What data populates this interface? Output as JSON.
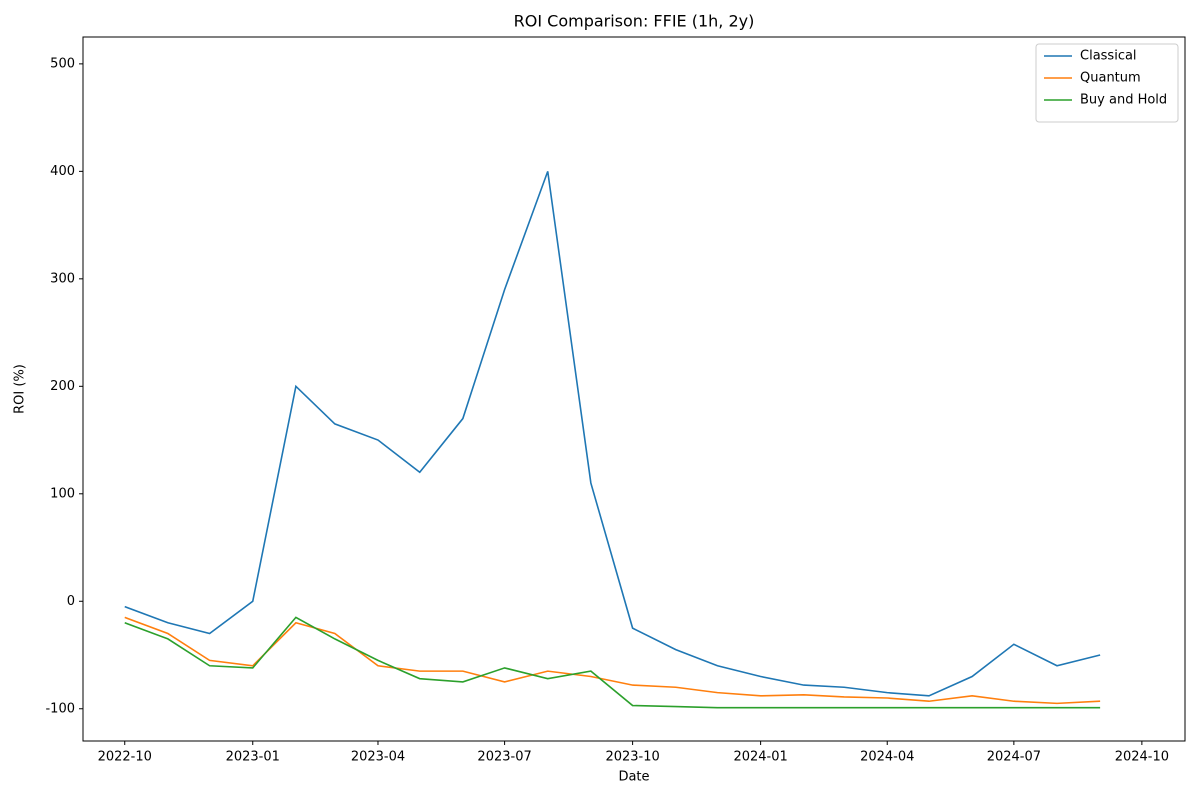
{
  "chart_data": {
    "type": "line",
    "title": "ROI Comparison: FFIE (1h, 2y)",
    "xlabel": "Date",
    "ylabel": "ROI (%)",
    "x": [
      "2022-10",
      "2022-11",
      "2022-12",
      "2023-01",
      "2023-02",
      "2023-03",
      "2023-04",
      "2023-05",
      "2023-06",
      "2023-07",
      "2023-08",
      "2023-09",
      "2023-10",
      "2023-11",
      "2023-12",
      "2024-01",
      "2024-02",
      "2024-03",
      "2024-04",
      "2024-05",
      "2024-06",
      "2024-07",
      "2024-08",
      "2024-09"
    ],
    "series": [
      {
        "name": "Classical",
        "color": "#1f77b4",
        "values": [
          -5,
          -20,
          -30,
          0,
          200,
          165,
          150,
          120,
          170,
          290,
          400,
          110,
          -25,
          -45,
          -60,
          -70,
          -78,
          -80,
          -85,
          -88,
          -70,
          -40,
          -60,
          -50
        ]
      },
      {
        "name": "Quantum",
        "color": "#ff7f0e",
        "values": [
          -15,
          -30,
          -55,
          -60,
          -20,
          -30,
          -60,
          -65,
          -65,
          -75,
          -65,
          -70,
          -78,
          -80,
          -85,
          -88,
          -87,
          -89,
          -90,
          -93,
          -88,
          -93,
          -95,
          -93
        ]
      },
      {
        "name": "Buy and Hold",
        "color": "#2ca02c",
        "values": [
          -20,
          -35,
          -60,
          -62,
          -15,
          -35,
          -55,
          -72,
          -75,
          -62,
          -72,
          -65,
          -97,
          -98,
          -99,
          -99,
          -99,
          -99,
          -99,
          -99,
          -99,
          -99,
          -99,
          -99
        ]
      }
    ],
    "xlim": [
      "2022-09",
      "2024-11"
    ],
    "xticks": [
      "2022-10",
      "2023-01",
      "2023-04",
      "2023-07",
      "2023-10",
      "2024-01",
      "2024-04",
      "2024-07",
      "2024-10"
    ],
    "ylim": [
      -130,
      525
    ],
    "yticks": [
      -100,
      0,
      100,
      200,
      300,
      400,
      500
    ],
    "legend": "upper right"
  }
}
